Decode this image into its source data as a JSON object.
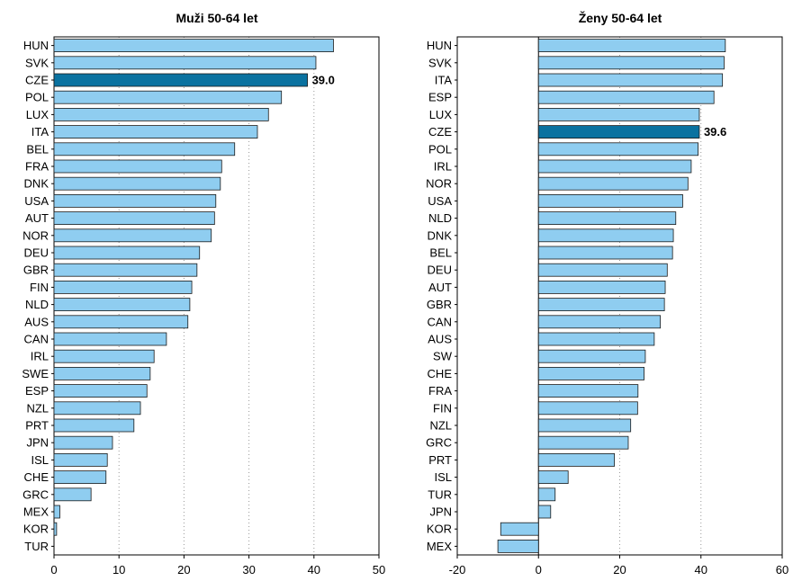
{
  "colors": {
    "bar": "#8fcdf0",
    "highlight": "#0a72a0",
    "bar_edge": "#1a1a1a",
    "grid": "#9a9a9a"
  },
  "chart_data": [
    {
      "type": "bar",
      "orientation": "horizontal",
      "title": "Muži 50-64 let",
      "xlabel": "",
      "ylabel": "",
      "xlim": [
        0,
        50
      ],
      "xticks": [
        0,
        10,
        20,
        30,
        40,
        50
      ],
      "grid": "vertical dotted",
      "highlight": "CZE",
      "data_labels": [
        {
          "category": "CZE",
          "text": "39.0"
        }
      ],
      "categories": [
        "HUN",
        "SVK",
        "CZE",
        "POL",
        "LUX",
        "ITA",
        "BEL",
        "FRA",
        "DNK",
        "USA",
        "AUT",
        "NOR",
        "DEU",
        "GBR",
        "FIN",
        "NLD",
        "AUS",
        "CAN",
        "IRL",
        "SWE",
        "ESP",
        "NZL",
        "PRT",
        "JPN",
        "ISL",
        "CHE",
        "GRC",
        "MEX",
        "KOR",
        "TUR"
      ],
      "values": [
        43.0,
        40.3,
        39.0,
        35.0,
        33.0,
        31.3,
        27.8,
        25.8,
        25.6,
        24.9,
        24.7,
        24.2,
        22.4,
        22.0,
        21.2,
        20.9,
        20.6,
        17.3,
        15.4,
        14.8,
        14.3,
        13.3,
        12.3,
        9.0,
        8.2,
        8.0,
        5.7,
        0.9,
        0.4,
        0.0
      ]
    },
    {
      "type": "bar",
      "orientation": "horizontal",
      "title": "Ženy 50-64 let",
      "xlabel": "",
      "ylabel": "",
      "xlim": [
        -20,
        60
      ],
      "xticks": [
        -20,
        0,
        20,
        40,
        60
      ],
      "grid": "vertical dotted",
      "highlight": "CZE",
      "data_labels": [
        {
          "category": "CZE",
          "text": "39.6"
        }
      ],
      "categories": [
        "HUN",
        "SVK",
        "ITA",
        "ESP",
        "LUX",
        "CZE",
        "POL",
        "IRL",
        "NOR",
        "USA",
        "NLD",
        "DNK",
        "BEL",
        "DEU",
        "AUT",
        "GBR",
        "CAN",
        "AUS",
        "SW",
        "CHE",
        "FRA",
        "FIN",
        "NZL",
        "GRC",
        "PRT",
        "ISL",
        "TUR",
        "JPN",
        "KOR",
        "MEX"
      ],
      "values": [
        46.0,
        45.7,
        45.3,
        43.2,
        39.6,
        39.6,
        39.3,
        37.6,
        36.8,
        35.5,
        33.8,
        33.2,
        33.0,
        31.7,
        31.2,
        31.0,
        30.0,
        28.5,
        26.3,
        26.0,
        24.5,
        24.4,
        22.7,
        22.1,
        18.7,
        7.3,
        4.1,
        3.0,
        -9.3,
        -10.0
      ]
    }
  ]
}
